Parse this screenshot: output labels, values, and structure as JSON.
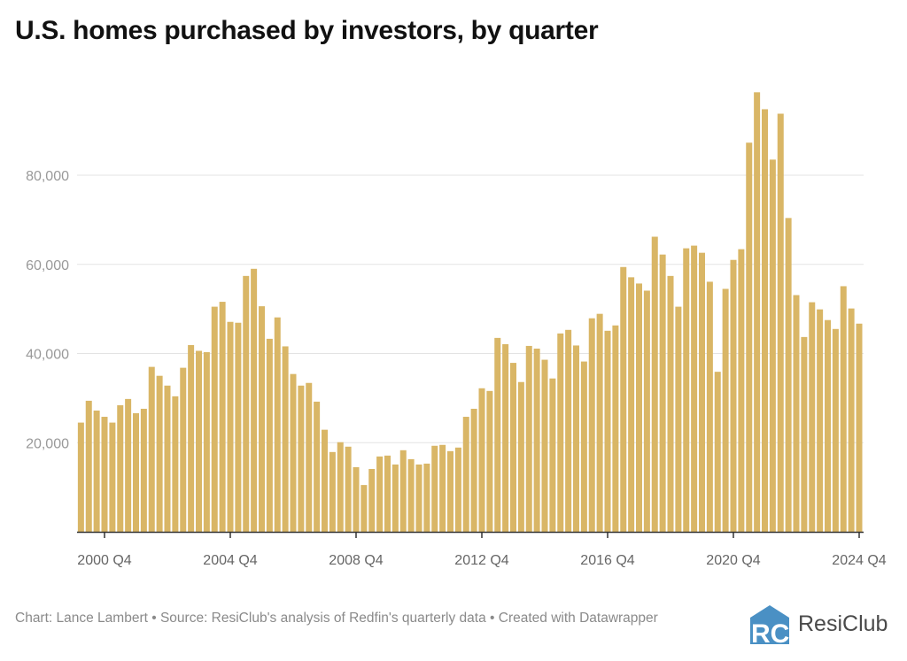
{
  "title": "U.S. homes purchased by investors, by quarter",
  "footer": "Chart: Lance Lambert • Source: ResiClub's analysis of Redfin's quarterly data • Created with Datawrapper",
  "logo": {
    "text": "ResiClub",
    "mark": "RC",
    "color": "#4a90c4"
  },
  "colors": {
    "bar": "#d9b666",
    "grid": "#e3e3e3",
    "axis": "#333333",
    "label": "#999999"
  },
  "chart_data": {
    "type": "bar",
    "title": "U.S. homes purchased by investors, by quarter",
    "xlabel": "",
    "ylabel": "",
    "ylim": [
      0,
      100000
    ],
    "yticks": [
      20000,
      40000,
      60000,
      80000
    ],
    "ytick_labels": [
      "20,000",
      "40,000",
      "60,000",
      "80,000"
    ],
    "grid": true,
    "first_quarter": "2000 Q1",
    "xtick_labels": [
      "2000 Q4",
      "2004 Q4",
      "2008 Q4",
      "2012 Q4",
      "2016 Q4",
      "2020 Q4",
      "2024 Q4"
    ],
    "xtick_indices": [
      3,
      19,
      35,
      51,
      67,
      83,
      99
    ],
    "values": [
      24500,
      29400,
      27200,
      25800,
      24500,
      28400,
      29800,
      26600,
      27600,
      37000,
      35000,
      32800,
      30400,
      36800,
      41900,
      40600,
      40300,
      50500,
      51600,
      47100,
      46900,
      57400,
      59000,
      50600,
      43300,
      48100,
      41600,
      35400,
      32800,
      33400,
      29200,
      22900,
      17900,
      20100,
      19100,
      14500,
      10500,
      14100,
      16900,
      17100,
      15100,
      18300,
      16300,
      15100,
      15300,
      19300,
      19500,
      18100,
      18900,
      25800,
      27600,
      32200,
      31600,
      43500,
      42100,
      37900,
      33600,
      41700,
      41100,
      38600,
      34400,
      44500,
      45300,
      41800,
      38200,
      47900,
      48900,
      45100,
      46300,
      59400,
      57100,
      55700,
      54100,
      66200,
      62200,
      57400,
      50500,
      63600,
      64200,
      62600,
      56100,
      35900,
      54500,
      61000,
      63400,
      87300,
      98600,
      94800,
      83500,
      93800,
      70400,
      53100,
      43700,
      51500,
      49900,
      47500,
      45500,
      55100,
      50100,
      46700
    ]
  }
}
